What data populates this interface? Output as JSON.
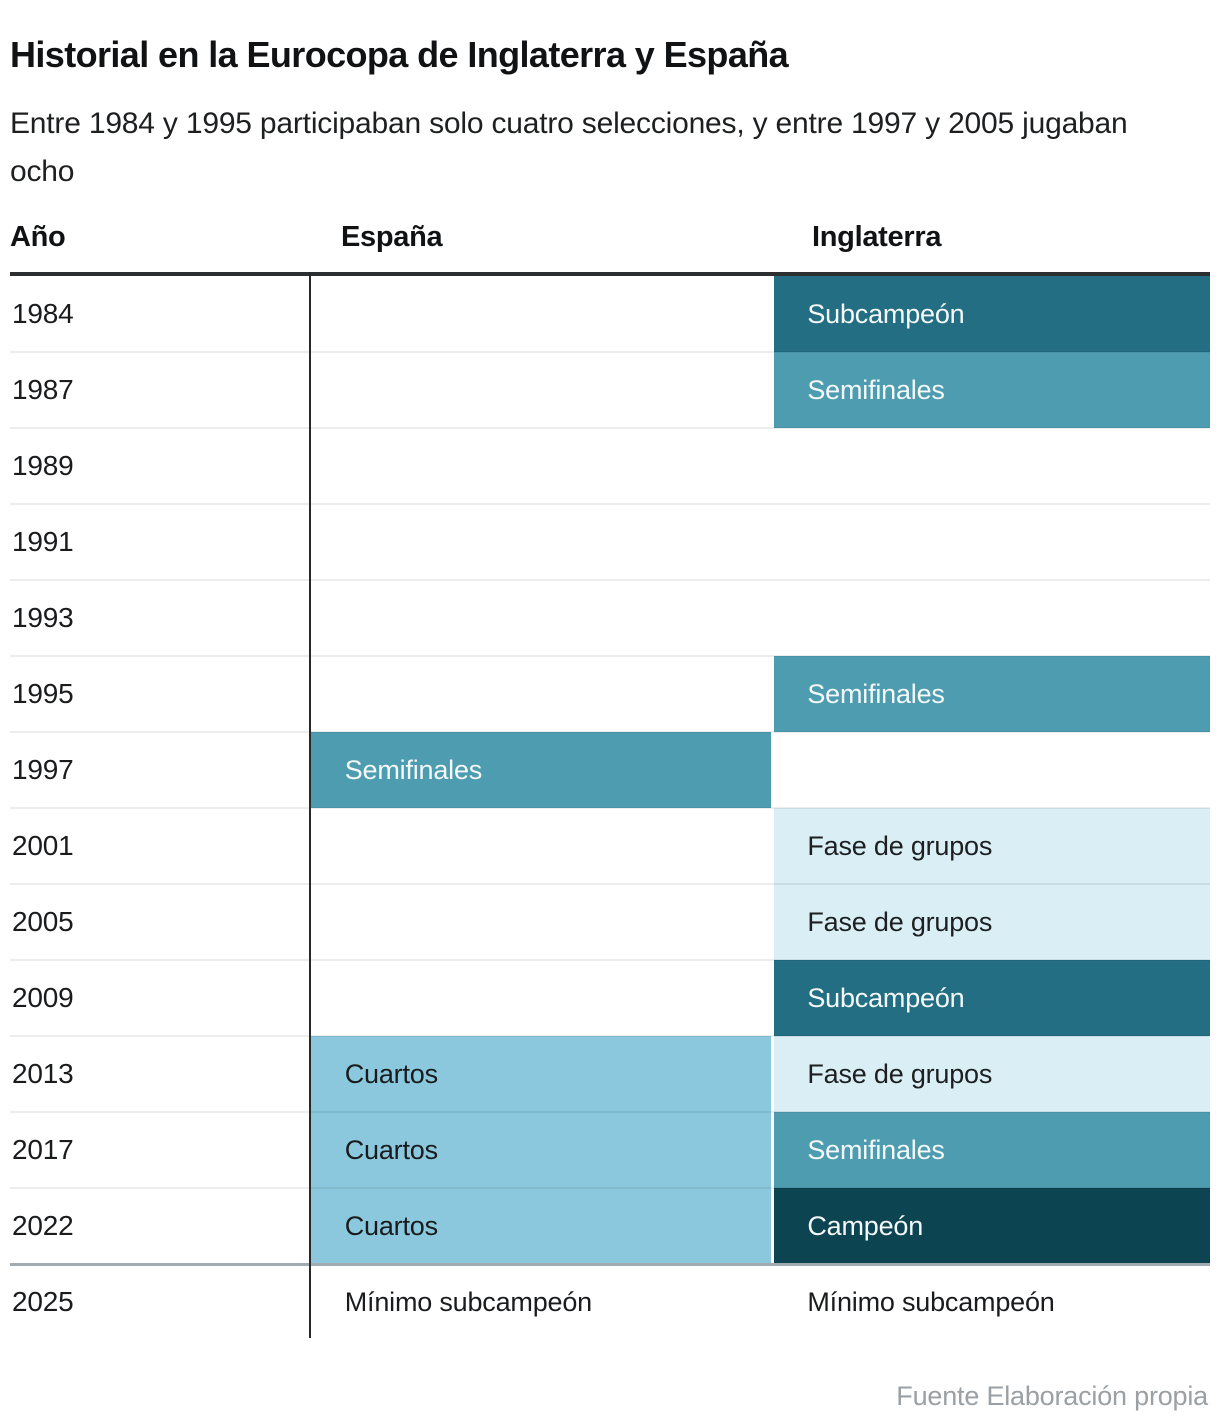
{
  "title": "Historial en la Eurocopa de Inglaterra y España",
  "subtitle": "Entre 1984 y 1995 participaban solo cuatro selecciones, y entre 1997 y 2005 jugaban ocho",
  "footer": "Fuente Elaboración propia",
  "columns": {
    "year": "Año",
    "spain": "España",
    "england": "Inglaterra"
  },
  "colors": {
    "header_rule": "#2d2e30",
    "vertical_line": "#26282a",
    "row_divider": "rgba(20,25,30,0.08)",
    "heavy_divider": "#a3abb1",
    "footer_text": "#9aa0a4",
    "tones": {
      "champion": {
        "bg": "#0d4452",
        "text": "#f4f8f9"
      },
      "runner_up": {
        "bg": "#236e82",
        "text": "#f4f8f9"
      },
      "semifinal": {
        "bg": "#4d9cb0",
        "text": "#f4f8f9"
      },
      "quarters": {
        "bg": "#8bc8dd",
        "text": "#1a1b1d"
      },
      "groups": {
        "bg": "#d9eef5",
        "text": "#1d1f20"
      },
      "plain": {
        "bg": "transparent",
        "text": "#1a1b1d"
      }
    }
  },
  "rows": [
    {
      "year": "1984",
      "spain": null,
      "england": {
        "label": "Subcampeón",
        "tone": "runner_up"
      }
    },
    {
      "year": "1987",
      "spain": null,
      "england": {
        "label": "Semifinales",
        "tone": "semifinal"
      }
    },
    {
      "year": "1989",
      "spain": null,
      "england": null
    },
    {
      "year": "1991",
      "spain": null,
      "england": null
    },
    {
      "year": "1993",
      "spain": null,
      "england": null
    },
    {
      "year": "1995",
      "spain": null,
      "england": {
        "label": "Semifinales",
        "tone": "semifinal"
      }
    },
    {
      "year": "1997",
      "spain": {
        "label": "Semifinales",
        "tone": "semifinal"
      },
      "england": null
    },
    {
      "year": "2001",
      "spain": null,
      "england": {
        "label": "Fase de grupos",
        "tone": "groups"
      }
    },
    {
      "year": "2005",
      "spain": null,
      "england": {
        "label": "Fase de grupos",
        "tone": "groups"
      }
    },
    {
      "year": "2009",
      "spain": null,
      "england": {
        "label": "Subcampeón",
        "tone": "runner_up"
      }
    },
    {
      "year": "2013",
      "spain": {
        "label": "Cuartos",
        "tone": "quarters"
      },
      "england": {
        "label": "Fase de grupos",
        "tone": "groups"
      }
    },
    {
      "year": "2017",
      "spain": {
        "label": "Cuartos",
        "tone": "quarters"
      },
      "england": {
        "label": "Semifinales",
        "tone": "semifinal"
      }
    },
    {
      "year": "2022",
      "spain": {
        "label": "Cuartos",
        "tone": "quarters"
      },
      "england": {
        "label": "Campeón",
        "tone": "champion"
      }
    },
    {
      "year": "2025",
      "spain": {
        "label": "Mínimo subcampeón",
        "tone": "plain"
      },
      "england": {
        "label": "Mínimo subcampeón",
        "tone": "plain"
      }
    }
  ],
  "chart_data": {
    "type": "table",
    "title": "Historial en la Eurocopa de Inglaterra y España",
    "subtitle": "Entre 1984 y 1995 participaban solo cuatro selecciones, y entre 1997 y 2005 jugaban ocho",
    "columns": [
      "Año",
      "España",
      "Inglaterra"
    ],
    "categories": [
      "1984",
      "1987",
      "1989",
      "1991",
      "1993",
      "1995",
      "1997",
      "2001",
      "2005",
      "2009",
      "2013",
      "2017",
      "2022",
      "2025"
    ],
    "series": [
      {
        "name": "España",
        "values": [
          null,
          null,
          null,
          null,
          null,
          null,
          "Semifinales",
          null,
          null,
          null,
          "Cuartos",
          "Cuartos",
          "Cuartos",
          "Mínimo subcampeón"
        ]
      },
      {
        "name": "Inglaterra",
        "values": [
          "Subcampeón",
          "Semifinales",
          null,
          null,
          null,
          "Semifinales",
          null,
          "Fase de grupos",
          "Fase de grupos",
          "Subcampeón",
          "Fase de grupos",
          "Semifinales",
          "Campeón",
          "Mínimo subcampeón"
        ]
      }
    ],
    "legend_position": "none",
    "grid": "horizontal-row-dividers",
    "color_scale": {
      "Campeón": "#0d4452",
      "Subcampeón": "#236e82",
      "Semifinales": "#4d9cb0",
      "Cuartos": "#8bc8dd",
      "Fase de grupos": "#d9eef5",
      "Mínimo subcampeón": "none"
    },
    "source": "Fuente Elaboración propia"
  }
}
